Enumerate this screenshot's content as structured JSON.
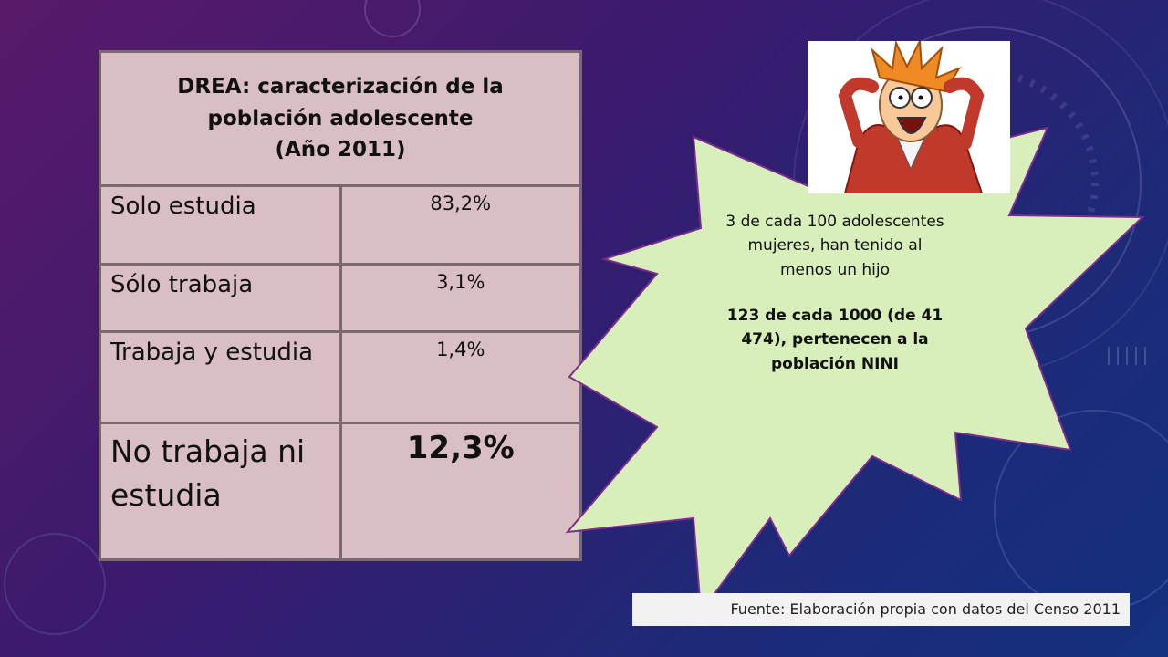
{
  "table": {
    "title_line1": "DREA: caracterización de la",
    "title_line2": "población adolescente",
    "title_line3": "(Año 2011)",
    "rows": [
      {
        "label": "Solo estudia",
        "value": "83,2%"
      },
      {
        "label": "Sólo trabaja",
        "value": "3,1%"
      },
      {
        "label": "Trabaja y estudia",
        "value": "1,4%"
      },
      {
        "label": "No trabaja ni estudia",
        "value": "12,3%"
      }
    ]
  },
  "callout": {
    "text1": "3 de cada 100 adolescentes mujeres, han tenido al menos un hijo",
    "text2": "123 de cada 1000  (de 41 474),  pertenecen a la población NINI"
  },
  "image": {
    "icon": "stressed-cartoon-character-icon"
  },
  "source_note": "Fuente: Elaboración propia con datos del Censo 2011",
  "colors": {
    "table_fill": "#d9bfc3",
    "table_border": "#7a6a6e",
    "callout_fill": "#d8eebb",
    "callout_border": "#7b2c8c"
  }
}
